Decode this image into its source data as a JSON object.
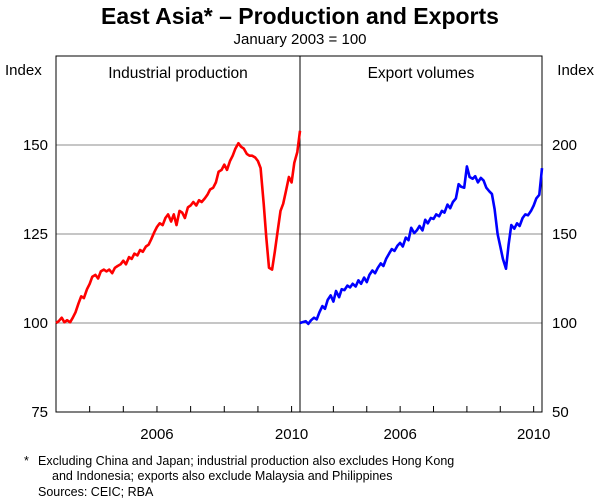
{
  "chart_data": {
    "type": "line",
    "title": "East Asia* – Production and Exports",
    "subtitle": "January 2003 = 100",
    "axes": {
      "left": {
        "label": "Index",
        "ticks": [
          "75",
          "100",
          "125",
          "150"
        ],
        "min": 75,
        "max": 175
      },
      "right": {
        "label": "Index",
        "ticks": [
          "50",
          "100",
          "150",
          "200"
        ],
        "min": 50,
        "max": 250
      },
      "x": {
        "ticks": [
          "2006",
          "2010"
        ],
        "min": 2003.0,
        "max": 2010.25
      }
    },
    "panels": [
      {
        "title": "Industrial production",
        "axis": "left",
        "color": "#ff0000",
        "series": [
          {
            "x": 2003.0,
            "y": 100.0
          },
          {
            "x": 2003.08,
            "y": 100.5
          },
          {
            "x": 2003.17,
            "y": 101.5
          },
          {
            "x": 2003.25,
            "y": 100.2
          },
          {
            "x": 2003.33,
            "y": 100.8
          },
          {
            "x": 2003.42,
            "y": 100.2
          },
          {
            "x": 2003.5,
            "y": 101.5
          },
          {
            "x": 2003.58,
            "y": 103.0
          },
          {
            "x": 2003.67,
            "y": 105.5
          },
          {
            "x": 2003.75,
            "y": 107.5
          },
          {
            "x": 2003.83,
            "y": 107.0
          },
          {
            "x": 2003.92,
            "y": 109.5
          },
          {
            "x": 2004.0,
            "y": 111.0
          },
          {
            "x": 2004.08,
            "y": 113.0
          },
          {
            "x": 2004.17,
            "y": 113.5
          },
          {
            "x": 2004.25,
            "y": 112.5
          },
          {
            "x": 2004.33,
            "y": 114.5
          },
          {
            "x": 2004.42,
            "y": 115.0
          },
          {
            "x": 2004.5,
            "y": 114.5
          },
          {
            "x": 2004.58,
            "y": 115.0
          },
          {
            "x": 2004.67,
            "y": 114.0
          },
          {
            "x": 2004.75,
            "y": 115.5
          },
          {
            "x": 2004.83,
            "y": 116.0
          },
          {
            "x": 2004.92,
            "y": 116.5
          },
          {
            "x": 2005.0,
            "y": 117.5
          },
          {
            "x": 2005.08,
            "y": 116.5
          },
          {
            "x": 2005.17,
            "y": 118.5
          },
          {
            "x": 2005.25,
            "y": 118.0
          },
          {
            "x": 2005.33,
            "y": 119.5
          },
          {
            "x": 2005.42,
            "y": 119.0
          },
          {
            "x": 2005.5,
            "y": 120.5
          },
          {
            "x": 2005.58,
            "y": 120.0
          },
          {
            "x": 2005.67,
            "y": 121.5
          },
          {
            "x": 2005.75,
            "y": 122.0
          },
          {
            "x": 2005.83,
            "y": 123.5
          },
          {
            "x": 2005.92,
            "y": 125.5
          },
          {
            "x": 2006.0,
            "y": 127.0
          },
          {
            "x": 2006.08,
            "y": 128.0
          },
          {
            "x": 2006.17,
            "y": 127.5
          },
          {
            "x": 2006.25,
            "y": 129.5
          },
          {
            "x": 2006.33,
            "y": 130.5
          },
          {
            "x": 2006.42,
            "y": 128.5
          },
          {
            "x": 2006.5,
            "y": 130.5
          },
          {
            "x": 2006.58,
            "y": 127.5
          },
          {
            "x": 2006.67,
            "y": 131.5
          },
          {
            "x": 2006.75,
            "y": 131.0
          },
          {
            "x": 2006.83,
            "y": 129.5
          },
          {
            "x": 2006.92,
            "y": 132.5
          },
          {
            "x": 2007.0,
            "y": 133.0
          },
          {
            "x": 2007.08,
            "y": 134.0
          },
          {
            "x": 2007.17,
            "y": 133.0
          },
          {
            "x": 2007.25,
            "y": 134.5
          },
          {
            "x": 2007.33,
            "y": 134.0
          },
          {
            "x": 2007.42,
            "y": 135.0
          },
          {
            "x": 2007.5,
            "y": 136.0
          },
          {
            "x": 2007.58,
            "y": 137.5
          },
          {
            "x": 2007.67,
            "y": 138.0
          },
          {
            "x": 2007.75,
            "y": 139.5
          },
          {
            "x": 2007.83,
            "y": 142.5
          },
          {
            "x": 2007.92,
            "y": 143.0
          },
          {
            "x": 2008.0,
            "y": 144.5
          },
          {
            "x": 2008.08,
            "y": 143.0
          },
          {
            "x": 2008.17,
            "y": 145.5
          },
          {
            "x": 2008.25,
            "y": 147.0
          },
          {
            "x": 2008.33,
            "y": 149.0
          },
          {
            "x": 2008.42,
            "y": 150.5
          },
          {
            "x": 2008.5,
            "y": 149.5
          },
          {
            "x": 2008.58,
            "y": 149.0
          },
          {
            "x": 2008.67,
            "y": 147.5
          },
          {
            "x": 2008.75,
            "y": 147.0
          },
          {
            "x": 2008.83,
            "y": 147.0
          },
          {
            "x": 2008.92,
            "y": 146.5
          },
          {
            "x": 2009.0,
            "y": 145.5
          },
          {
            "x": 2009.08,
            "y": 143.5
          },
          {
            "x": 2009.17,
            "y": 133.5
          },
          {
            "x": 2009.25,
            "y": 124.0
          },
          {
            "x": 2009.33,
            "y": 115.5
          },
          {
            "x": 2009.42,
            "y": 115.0
          },
          {
            "x": 2009.5,
            "y": 120.0
          },
          {
            "x": 2009.58,
            "y": 125.5
          },
          {
            "x": 2009.67,
            "y": 131.5
          },
          {
            "x": 2009.75,
            "y": 133.5
          },
          {
            "x": 2009.83,
            "y": 137.0
          },
          {
            "x": 2009.92,
            "y": 141.0
          },
          {
            "x": 2010.0,
            "y": 139.5
          },
          {
            "x": 2010.08,
            "y": 145.0
          },
          {
            "x": 2010.17,
            "y": 148.0
          },
          {
            "x": 2010.25,
            "y": 154.0
          }
        ]
      },
      {
        "title": "Export volumes",
        "axis": "right",
        "color": "#0000ff",
        "series": [
          {
            "x": 2003.0,
            "y": 100.0
          },
          {
            "x": 2003.08,
            "y": 100.5
          },
          {
            "x": 2003.17,
            "y": 101.0
          },
          {
            "x": 2003.25,
            "y": 99.5
          },
          {
            "x": 2003.33,
            "y": 101.5
          },
          {
            "x": 2003.42,
            "y": 103.0
          },
          {
            "x": 2003.5,
            "y": 102.0
          },
          {
            "x": 2003.58,
            "y": 106.0
          },
          {
            "x": 2003.67,
            "y": 109.5
          },
          {
            "x": 2003.75,
            "y": 108.0
          },
          {
            "x": 2003.83,
            "y": 113.0
          },
          {
            "x": 2003.92,
            "y": 115.5
          },
          {
            "x": 2004.0,
            "y": 112.0
          },
          {
            "x": 2004.08,
            "y": 118.0
          },
          {
            "x": 2004.17,
            "y": 114.5
          },
          {
            "x": 2004.25,
            "y": 119.0
          },
          {
            "x": 2004.33,
            "y": 118.5
          },
          {
            "x": 2004.42,
            "y": 121.0
          },
          {
            "x": 2004.5,
            "y": 120.0
          },
          {
            "x": 2004.58,
            "y": 122.0
          },
          {
            "x": 2004.67,
            "y": 120.5
          },
          {
            "x": 2004.75,
            "y": 124.0
          },
          {
            "x": 2004.83,
            "y": 122.0
          },
          {
            "x": 2004.92,
            "y": 125.5
          },
          {
            "x": 2005.0,
            "y": 123.0
          },
          {
            "x": 2005.08,
            "y": 127.0
          },
          {
            "x": 2005.17,
            "y": 129.5
          },
          {
            "x": 2005.25,
            "y": 128.0
          },
          {
            "x": 2005.33,
            "y": 131.0
          },
          {
            "x": 2005.42,
            "y": 133.5
          },
          {
            "x": 2005.5,
            "y": 132.0
          },
          {
            "x": 2005.58,
            "y": 136.0
          },
          {
            "x": 2005.67,
            "y": 139.0
          },
          {
            "x": 2005.75,
            "y": 141.5
          },
          {
            "x": 2005.83,
            "y": 140.5
          },
          {
            "x": 2005.92,
            "y": 143.5
          },
          {
            "x": 2006.0,
            "y": 145.0
          },
          {
            "x": 2006.08,
            "y": 143.0
          },
          {
            "x": 2006.17,
            "y": 148.0
          },
          {
            "x": 2006.25,
            "y": 146.5
          },
          {
            "x": 2006.33,
            "y": 153.5
          },
          {
            "x": 2006.42,
            "y": 150.5
          },
          {
            "x": 2006.5,
            "y": 152.0
          },
          {
            "x": 2006.58,
            "y": 154.5
          },
          {
            "x": 2006.67,
            "y": 152.0
          },
          {
            "x": 2006.75,
            "y": 158.0
          },
          {
            "x": 2006.83,
            "y": 156.0
          },
          {
            "x": 2006.92,
            "y": 159.0
          },
          {
            "x": 2007.0,
            "y": 158.5
          },
          {
            "x": 2007.08,
            "y": 161.0
          },
          {
            "x": 2007.17,
            "y": 160.0
          },
          {
            "x": 2007.25,
            "y": 163.0
          },
          {
            "x": 2007.33,
            "y": 162.0
          },
          {
            "x": 2007.42,
            "y": 166.5
          },
          {
            "x": 2007.5,
            "y": 164.5
          },
          {
            "x": 2007.58,
            "y": 168.0
          },
          {
            "x": 2007.67,
            "y": 170.0
          },
          {
            "x": 2007.75,
            "y": 178.0
          },
          {
            "x": 2007.83,
            "y": 176.5
          },
          {
            "x": 2007.92,
            "y": 176.0
          },
          {
            "x": 2008.0,
            "y": 188.0
          },
          {
            "x": 2008.08,
            "y": 182.0
          },
          {
            "x": 2008.17,
            "y": 181.0
          },
          {
            "x": 2008.25,
            "y": 182.5
          },
          {
            "x": 2008.33,
            "y": 179.0
          },
          {
            "x": 2008.42,
            "y": 181.5
          },
          {
            "x": 2008.5,
            "y": 180.0
          },
          {
            "x": 2008.58,
            "y": 176.0
          },
          {
            "x": 2008.67,
            "y": 174.0
          },
          {
            "x": 2008.75,
            "y": 172.5
          },
          {
            "x": 2008.83,
            "y": 164.0
          },
          {
            "x": 2008.92,
            "y": 150.0
          },
          {
            "x": 2009.0,
            "y": 143.0
          },
          {
            "x": 2009.08,
            "y": 136.0
          },
          {
            "x": 2009.17,
            "y": 130.5
          },
          {
            "x": 2009.25,
            "y": 144.0
          },
          {
            "x": 2009.33,
            "y": 155.0
          },
          {
            "x": 2009.42,
            "y": 153.0
          },
          {
            "x": 2009.5,
            "y": 156.0
          },
          {
            "x": 2009.58,
            "y": 154.5
          },
          {
            "x": 2009.67,
            "y": 159.0
          },
          {
            "x": 2009.75,
            "y": 161.0
          },
          {
            "x": 2009.83,
            "y": 160.5
          },
          {
            "x": 2009.92,
            "y": 163.0
          },
          {
            "x": 2010.0,
            "y": 166.0
          },
          {
            "x": 2010.08,
            "y": 170.0
          },
          {
            "x": 2010.17,
            "y": 172.0
          },
          {
            "x": 2010.25,
            "y": 187.0
          }
        ]
      }
    ],
    "grid": "horizontal",
    "legend": "none"
  },
  "notes": {
    "line1": "Excluding China and Japan; industrial production also excludes Hong Kong",
    "line2": "and Indonesia; exports also exclude Malaysia and Philippines",
    "star": "*",
    "sources": "Sources: CEIC; RBA"
  }
}
